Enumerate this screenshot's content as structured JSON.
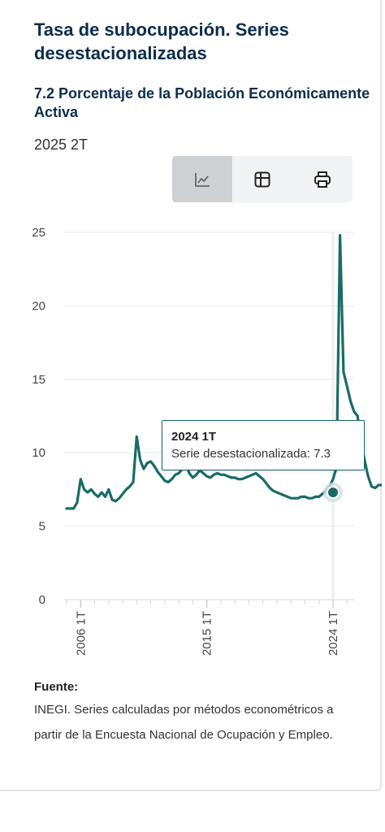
{
  "header": {
    "title": "Tasa de subocupación. Series desestacionalizadas",
    "subtitle": "7.2  Porcentaje de la Población Económicamente Activa",
    "period": "2025 2T"
  },
  "toolbar": {
    "items": [
      {
        "icon": "line-chart-icon",
        "active": true
      },
      {
        "icon": "table-icon",
        "active": false
      },
      {
        "icon": "print-icon",
        "active": false
      }
    ]
  },
  "tooltip": {
    "title": "2024 1T",
    "text": "Serie desestacionalizada: 7.3"
  },
  "source": {
    "label": "Fuente:",
    "text": "INEGI. Series calculadas por métodos econométricos a partir de la Encuesta Nacional de Ocupación y Empleo."
  },
  "colors": {
    "line": "#1a6b66",
    "title": "#0d2d4d",
    "grid": "#e6e8ea"
  },
  "chart_data": {
    "type": "line",
    "start": "2005 1T",
    "x_ticks": [
      "2006 1T",
      "2015 1T",
      "2024 1T"
    ],
    "y_ticks": [
      0,
      5,
      10,
      15,
      20,
      25
    ],
    "ylim": [
      0,
      25
    ],
    "highlight": {
      "x": "2024 1T",
      "y": 7.3
    },
    "series": [
      {
        "values": [
          6.2,
          6.2,
          6.2,
          6.6,
          8.2,
          7.5,
          7.3,
          7.5,
          7.2,
          7.0,
          7.3,
          7.0,
          7.5,
          6.8,
          6.7,
          6.9,
          7.2,
          7.5,
          7.7,
          8.0,
          11.1,
          9.5,
          8.9,
          9.3,
          9.4,
          9.1,
          8.7,
          8.4,
          8.1,
          8.0,
          8.2,
          8.5,
          8.6,
          8.9,
          9.2,
          8.6,
          8.3,
          8.5,
          8.8,
          8.6,
          8.4,
          8.3,
          8.5,
          8.6,
          8.5,
          8.5,
          8.4,
          8.3,
          8.3,
          8.2,
          8.2,
          8.3,
          8.4,
          8.5,
          8.6,
          8.4,
          8.2,
          7.9,
          7.6,
          7.4,
          7.3,
          7.2,
          7.1,
          7.0,
          6.9,
          6.9,
          6.9,
          7.0,
          7.0,
          6.9,
          6.9,
          7.0,
          7.0,
          7.2,
          7.4,
          7.7,
          8.2,
          9.0,
          24.8,
          15.5,
          14.5,
          13.5,
          12.8,
          12.5,
          10.8,
          9.5,
          8.4,
          7.7,
          7.6,
          7.8,
          7.8,
          7.6,
          7.6,
          7.5,
          7.3,
          7.4,
          7.9,
          8.0,
          7.3,
          7.2,
          7.3
        ]
      }
    ]
  }
}
